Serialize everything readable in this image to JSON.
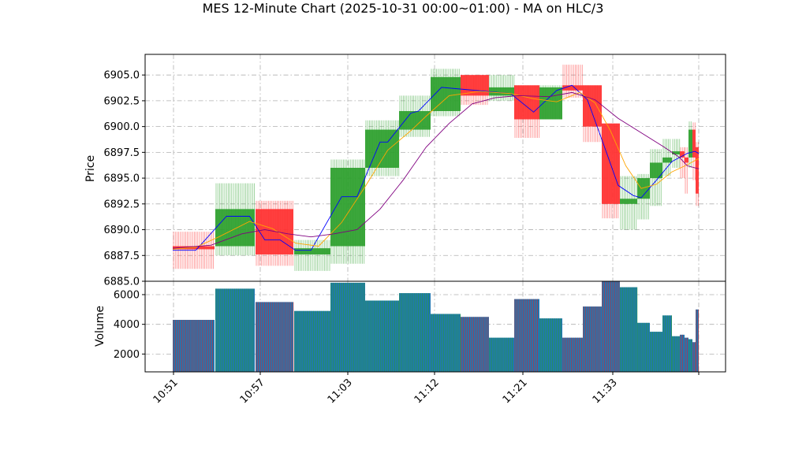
{
  "chart_data": {
    "type": "ohlc-candlestick-with-volume",
    "title": "MES 12-Minute Chart (2025-10-31 00:00~01:00) - MA on HLC/3",
    "price_panel": {
      "ylabel": "Price",
      "ylim": [
        6885.0,
        6907.0
      ],
      "yticks": [
        "6885.0",
        "6887.5",
        "6890.0",
        "6892.5",
        "6895.0",
        "6897.5",
        "6900.0",
        "6902.5",
        "6905.0"
      ],
      "grid": true
    },
    "volume_panel": {
      "ylabel": "Volume",
      "ylim": [
        800,
        6900
      ],
      "yticks": [
        "2000",
        "4000",
        "6000"
      ],
      "grid": true
    },
    "x_axis": {
      "tick_labels": [
        "10:51",
        "10:57",
        "11:03",
        "11:12",
        "11:21",
        "11:33"
      ],
      "tick_rotation": -45
    },
    "candles": [
      {
        "time": "10:51",
        "open": 6888.4,
        "high": 6889.8,
        "low": 6886.2,
        "close": 6888.1,
        "volume": 4300
      },
      {
        "time": "10:54",
        "open": 6888.4,
        "high": 6894.5,
        "low": 6887.5,
        "close": 6892.0,
        "volume": 6400
      },
      {
        "time": "10:57",
        "open": 6892.0,
        "high": 6892.8,
        "low": 6886.5,
        "close": 6887.6,
        "volume": 5500
      },
      {
        "time": "11:00",
        "open": 6887.6,
        "high": 6889.0,
        "low": 6886.0,
        "close": 6888.2,
        "volume": 4900
      },
      {
        "time": "11:03",
        "open": 6888.4,
        "high": 6896.8,
        "low": 6886.7,
        "close": 6896.0,
        "volume": 6800
      },
      {
        "time": "11:06",
        "open": 6896.0,
        "high": 6900.6,
        "low": 6895.2,
        "close": 6899.7,
        "volume": 5600
      },
      {
        "time": "11:09",
        "open": 6899.7,
        "high": 6903.0,
        "low": 6899.0,
        "close": 6901.5,
        "volume": 6100
      },
      {
        "time": "11:12",
        "open": 6901.5,
        "high": 6905.6,
        "low": 6901.0,
        "close": 6904.8,
        "volume": 4700
      },
      {
        "time": "11:15",
        "open": 6905.0,
        "high": 6905.0,
        "low": 6902.1,
        "close": 6903.0,
        "volume": 4500
      },
      {
        "time": "11:18",
        "open": 6903.0,
        "high": 6905.0,
        "low": 6902.5,
        "close": 6903.8,
        "volume": 3100
      },
      {
        "time": "11:21",
        "open": 6904.0,
        "high": 6904.0,
        "low": 6898.9,
        "close": 6900.7,
        "volume": 5700
      },
      {
        "time": "11:24",
        "open": 6900.7,
        "high": 6904.0,
        "low": 6900.7,
        "close": 6903.8,
        "volume": 4400
      },
      {
        "time": "11:27",
        "open": 6904.0,
        "high": 6906.0,
        "low": 6902.8,
        "close": 6903.5,
        "volume": 3100
      },
      {
        "time": "11:30",
        "open": 6904.0,
        "high": 6904.0,
        "low": 6898.5,
        "close": 6900.0,
        "volume": 5200
      },
      {
        "time": "11:33",
        "open": 6900.3,
        "high": 6900.3,
        "low": 6891.1,
        "close": 6892.5,
        "volume": 6900
      },
      {
        "time": "11:35",
        "open": 6892.5,
        "high": 6895.2,
        "low": 6890.0,
        "close": 6893.0,
        "volume": 6500
      },
      {
        "time": "11:37",
        "open": 6893.0,
        "high": 6895.4,
        "low": 6891.0,
        "close": 6895.0,
        "volume": 4100
      },
      {
        "time": "11:38",
        "open": 6895.0,
        "high": 6897.8,
        "low": 6892.3,
        "close": 6896.5,
        "volume": 3500
      },
      {
        "time": "11:39",
        "open": 6896.5,
        "high": 6898.8,
        "low": 6895.2,
        "close": 6897.0,
        "volume": 4600
      },
      {
        "time": "11:40",
        "open": 6897.3,
        "high": 6898.8,
        "low": 6896.0,
        "close": 6897.6,
        "volume": 3200
      },
      {
        "time": "11:41",
        "open": 6897.6,
        "high": 6898.0,
        "low": 6895.0,
        "close": 6897.0,
        "volume": 3300
      },
      {
        "time": "11:41",
        "open": 6897.0,
        "high": 6898.0,
        "low": 6893.5,
        "close": 6896.5,
        "volume": 3100
      },
      {
        "time": "11:42",
        "open": 6897.0,
        "high": 6900.5,
        "low": 6896.0,
        "close": 6899.7,
        "volume": 3000
      },
      {
        "time": "11:42",
        "open": 6899.7,
        "high": 6900.4,
        "low": 6894.8,
        "close": 6897.0,
        "volume": 2800
      },
      {
        "time": "11:43",
        "open": 6898.0,
        "high": 6898.5,
        "low": 6892.3,
        "close": 6893.5,
        "volume": 5000
      }
    ],
    "moving_averages": [
      {
        "color": "#0000ff",
        "values": [
          [
            0,
            6888.0
          ],
          [
            3,
            6888.0
          ],
          [
            7,
            6891.3
          ],
          [
            10,
            6891.3
          ],
          [
            12,
            6889.0
          ],
          [
            14,
            6889.0
          ],
          [
            16,
            6888.0
          ],
          [
            18,
            6888.0
          ],
          [
            22,
            6893.2
          ],
          [
            24,
            6893.2
          ],
          [
            27,
            6898.5
          ],
          [
            28,
            6898.5
          ],
          [
            31,
            6901.3
          ],
          [
            32,
            6901.5
          ],
          [
            35,
            6903.8
          ],
          [
            38,
            6903.6
          ],
          [
            44,
            6903.2
          ],
          [
            47,
            6901.4
          ],
          [
            50,
            6903.5
          ],
          [
            52,
            6904.0
          ],
          [
            54,
            6902.6
          ],
          [
            56,
            6898.5
          ],
          [
            58,
            6894.3
          ],
          [
            60,
            6893.3
          ],
          [
            61,
            6893.1
          ],
          [
            63,
            6894.8
          ],
          [
            65,
            6896.6
          ],
          [
            66,
            6897.0
          ],
          [
            67,
            6897.4
          ],
          [
            68,
            6897.6
          ],
          [
            68.5,
            6897.4
          ]
        ]
      },
      {
        "color": "#ffa500",
        "values": [
          [
            0,
            6888.1
          ],
          [
            3,
            6888.3
          ],
          [
            6,
            6889.3
          ],
          [
            10,
            6890.8
          ],
          [
            13,
            6890.1
          ],
          [
            16,
            6888.7
          ],
          [
            19,
            6888.4
          ],
          [
            22,
            6890.7
          ],
          [
            25,
            6894.1
          ],
          [
            28,
            6897.7
          ],
          [
            31,
            6899.6
          ],
          [
            33,
            6901.0
          ],
          [
            36,
            6903.0
          ],
          [
            40,
            6903.4
          ],
          [
            44,
            6903.2
          ],
          [
            47,
            6902.7
          ],
          [
            50,
            6902.4
          ],
          [
            53,
            6903.3
          ],
          [
            55,
            6902.3
          ],
          [
            57,
            6899.6
          ],
          [
            59,
            6896.2
          ],
          [
            61,
            6894.0
          ],
          [
            63,
            6894.4
          ],
          [
            65,
            6895.6
          ],
          [
            67,
            6896.3
          ],
          [
            68.5,
            6896.9
          ]
        ]
      },
      {
        "color": "#800080",
        "values": [
          [
            0,
            6888.2
          ],
          [
            5,
            6888.5
          ],
          [
            9,
            6889.6
          ],
          [
            12,
            6890.0
          ],
          [
            15,
            6889.6
          ],
          [
            18,
            6889.3
          ],
          [
            21,
            6889.6
          ],
          [
            24,
            6890.0
          ],
          [
            27,
            6892.0
          ],
          [
            30,
            6894.8
          ],
          [
            33,
            6898.0
          ],
          [
            36,
            6900.3
          ],
          [
            39,
            6902.2
          ],
          [
            42,
            6902.8
          ],
          [
            45,
            6903.0
          ],
          [
            49,
            6902.9
          ],
          [
            52,
            6903.3
          ],
          [
            55,
            6902.6
          ],
          [
            58,
            6900.8
          ],
          [
            61,
            6899.4
          ],
          [
            64,
            6898.0
          ],
          [
            66,
            6897.0
          ],
          [
            67,
            6896.2
          ],
          [
            68.5,
            6895.9
          ]
        ]
      }
    ],
    "colors": {
      "up": "#2ca02c",
      "down": "#ff3030",
      "volume_bar": "#1f77b4",
      "volume_edge_up": "#2ca02c",
      "volume_edge_down": "#d62728"
    }
  }
}
